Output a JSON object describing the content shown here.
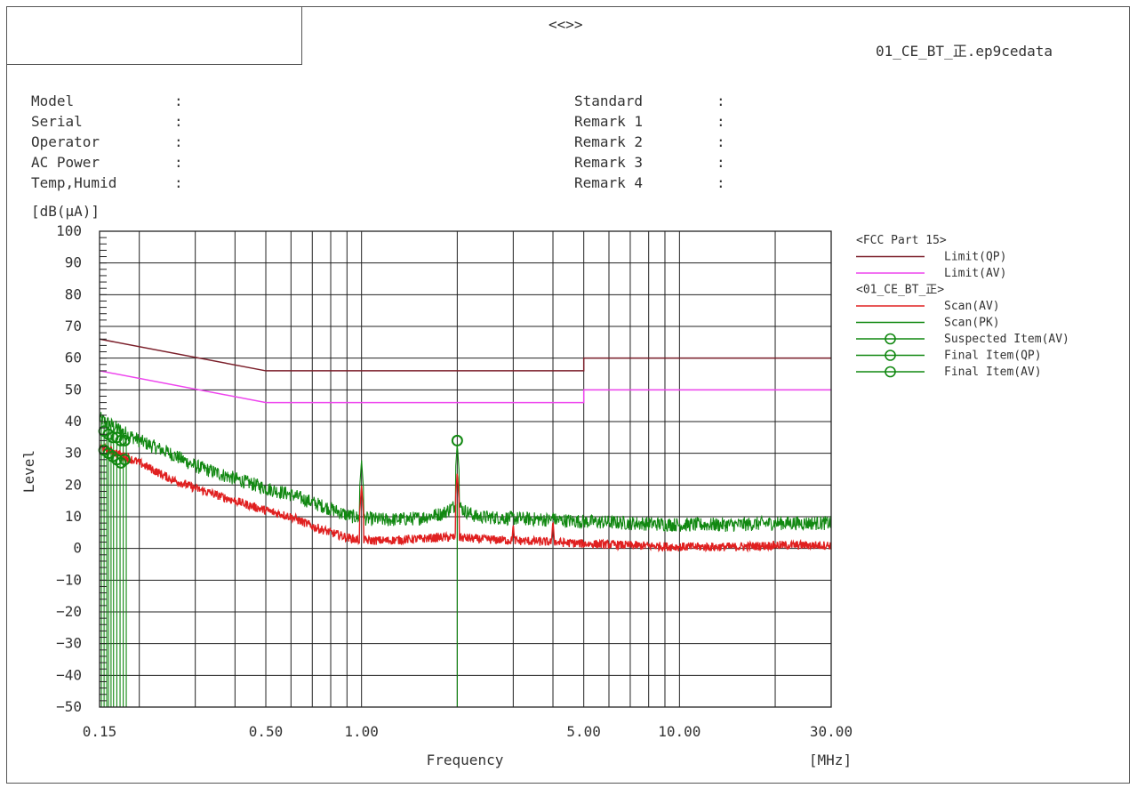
{
  "header": {
    "center_text": "<<>>",
    "file_name": "01_CE_BT_正.ep9cedata"
  },
  "info": {
    "left": [
      {
        "label": "Model",
        "sep": ":"
      },
      {
        "label": "Serial",
        "sep": ":"
      },
      {
        "label": "Operator",
        "sep": ":"
      },
      {
        "label": "AC Power",
        "sep": ":"
      },
      {
        "label": "Temp,Humid",
        "sep": ":"
      }
    ],
    "right": [
      {
        "label": "Standard",
        "sep": ":"
      },
      {
        "label": "Remark 1",
        "sep": ":"
      },
      {
        "label": "Remark 2",
        "sep": ":"
      },
      {
        "label": "Remark 3",
        "sep": ":"
      },
      {
        "label": "Remark 4",
        "sep": ":"
      }
    ]
  },
  "colors": {
    "limit_qp": "#7b1f2a",
    "limit_av": "#ee44ee",
    "scan_av": "#e02020",
    "scan_pk": "#118811",
    "grid": "#222222"
  },
  "chart_data": {
    "type": "line",
    "ylabel": "Level",
    "yunit": "[dB(μA)]",
    "xlabel": "Frequency",
    "xunit": "[MHz]",
    "x_scale": "log",
    "xlim": [
      0.15,
      30
    ],
    "ylim": [
      -50,
      100
    ],
    "y_ticks": [
      100,
      90,
      80,
      70,
      60,
      50,
      40,
      30,
      20,
      10,
      0,
      -10,
      -20,
      -30,
      -40,
      -50
    ],
    "x_tick_labels": [
      {
        "value": 0.15,
        "label": "0.15"
      },
      {
        "value": 0.5,
        "label": "0.50"
      },
      {
        "value": 1,
        "label": "1.00"
      },
      {
        "value": 5,
        "label": "5.00"
      },
      {
        "value": 10,
        "label": "10.00"
      },
      {
        "value": 30,
        "label": "30.00"
      }
    ],
    "x_gridlines": [
      0.15,
      0.2,
      0.3,
      0.4,
      0.5,
      0.6,
      0.7,
      0.8,
      0.9,
      1,
      2,
      3,
      4,
      5,
      6,
      7,
      8,
      9,
      10,
      20,
      30
    ],
    "grid": true,
    "legend_position": "right",
    "legend": [
      {
        "kind": "header",
        "text": "<FCC Part 15>"
      },
      {
        "kind": "line",
        "text": "Limit(QP)",
        "series": "limit_qp"
      },
      {
        "kind": "line",
        "text": "Limit(AV)",
        "series": "limit_av"
      },
      {
        "kind": "header",
        "text": "<01_CE_BT_正>"
      },
      {
        "kind": "line",
        "text": "Scan(AV)",
        "series": "scan_av"
      },
      {
        "kind": "line",
        "text": "Scan(PK)",
        "series": "scan_pk"
      },
      {
        "kind": "marker",
        "text": "Suspected Item(AV)",
        "series": "scan_pk"
      },
      {
        "kind": "marker",
        "text": "Final Item(QP)",
        "series": "scan_pk"
      },
      {
        "kind": "marker",
        "text": "Final Item(AV)",
        "series": "scan_pk"
      }
    ],
    "series": [
      {
        "id": "limit_qp",
        "name": "Limit(QP)",
        "step": true,
        "points": [
          [
            0.15,
            66
          ],
          [
            0.5,
            56
          ],
          [
            5,
            56
          ],
          [
            5,
            60
          ],
          [
            30,
            60
          ]
        ]
      },
      {
        "id": "limit_av",
        "name": "Limit(AV)",
        "step": true,
        "points": [
          [
            0.15,
            56
          ],
          [
            0.5,
            46
          ],
          [
            5,
            46
          ],
          [
            5,
            50
          ],
          [
            30,
            50
          ]
        ]
      },
      {
        "id": "scan_pk",
        "name": "Scan(PK)",
        "points": [
          [
            0.15,
            41
          ],
          [
            0.17,
            38
          ],
          [
            0.2,
            34
          ],
          [
            0.25,
            30
          ],
          [
            0.3,
            26
          ],
          [
            0.4,
            22
          ],
          [
            0.5,
            19
          ],
          [
            0.6,
            17
          ],
          [
            0.7,
            14.5
          ],
          [
            0.8,
            12.5
          ],
          [
            0.9,
            10.5
          ],
          [
            1.0,
            9.5
          ],
          [
            1.2,
            9
          ],
          [
            1.5,
            9.5
          ],
          [
            1.8,
            11
          ],
          [
            2.0,
            14
          ],
          [
            2.1,
            12
          ],
          [
            2.3,
            10
          ],
          [
            3,
            9.5
          ],
          [
            4,
            9
          ],
          [
            5,
            8.5
          ],
          [
            7,
            8
          ],
          [
            10,
            7.5
          ],
          [
            15,
            7.5
          ],
          [
            20,
            8
          ],
          [
            30,
            8
          ]
        ]
      },
      {
        "id": "scan_av",
        "name": "Scan(AV)",
        "points": [
          [
            0.15,
            32
          ],
          [
            0.17,
            30
          ],
          [
            0.2,
            27
          ],
          [
            0.25,
            22
          ],
          [
            0.3,
            19
          ],
          [
            0.4,
            15
          ],
          [
            0.5,
            12
          ],
          [
            0.6,
            10
          ],
          [
            0.7,
            7
          ],
          [
            0.8,
            5
          ],
          [
            0.9,
            3.5
          ],
          [
            1.0,
            2.5
          ],
          [
            1.2,
            2.5
          ],
          [
            1.5,
            3
          ],
          [
            1.8,
            3.5
          ],
          [
            2.0,
            3.5
          ],
          [
            2.3,
            3
          ],
          [
            3,
            2.5
          ],
          [
            4,
            2
          ],
          [
            5,
            1.5
          ],
          [
            7,
            1
          ],
          [
            10,
            0.5
          ],
          [
            15,
            0.5
          ],
          [
            20,
            1
          ],
          [
            30,
            1
          ]
        ]
      }
    ],
    "spikes": [
      {
        "x": 1.0,
        "pk": 28,
        "av": 20
      },
      {
        "x": 2.0,
        "pk": 33,
        "av": 24
      },
      {
        "x": 3.0,
        "pk": 11,
        "av": 8
      },
      {
        "x": 4.0,
        "pk": 12,
        "av": 9
      }
    ],
    "dips_to_floor": [
      0.152,
      0.155,
      0.158,
      0.16,
      0.163,
      0.166,
      0.17,
      0.174,
      0.178,
      0.182,
      2.0
    ],
    "markers": [
      {
        "x": 0.155,
        "y": 37
      },
      {
        "x": 0.16,
        "y": 36
      },
      {
        "x": 0.165,
        "y": 35
      },
      {
        "x": 0.17,
        "y": 35
      },
      {
        "x": 0.175,
        "y": 34
      },
      {
        "x": 0.18,
        "y": 34
      },
      {
        "x": 0.155,
        "y": 31
      },
      {
        "x": 0.16,
        "y": 30
      },
      {
        "x": 0.165,
        "y": 29
      },
      {
        "x": 0.17,
        "y": 28
      },
      {
        "x": 0.175,
        "y": 27
      },
      {
        "x": 0.18,
        "y": 28
      },
      {
        "x": 2.0,
        "y": 34
      }
    ]
  }
}
